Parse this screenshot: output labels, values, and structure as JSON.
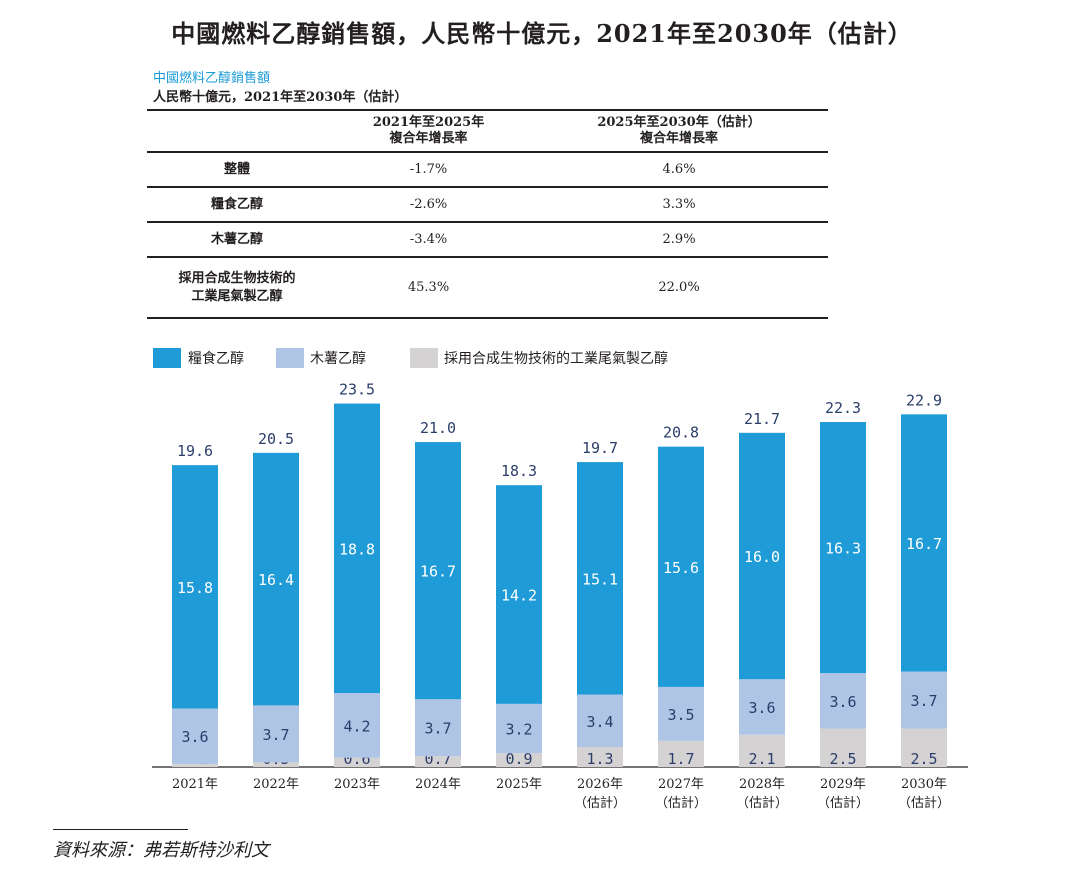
{
  "title": "中國燃料乙醇銷售額，人民幣十億元，2021年至2030年（估計）",
  "subtitle": "中國燃料乙醇銷售額",
  "unit_line": "人民幣十億元，2021年至2030年（估計）",
  "table": {
    "headers": [
      {
        "line1": "2021年至2025年",
        "line2": "複合年增長率"
      },
      {
        "line1": "2025年至2030年（估計）",
        "line2": "複合年增長率"
      }
    ],
    "rows": [
      {
        "label_line1": "整體",
        "label_line2": "",
        "cagr_2021_2025": "-1.7%",
        "cagr_2025_2030": "4.6%"
      },
      {
        "label_line1": "糧食乙醇",
        "label_line2": "",
        "cagr_2021_2025": "-2.6%",
        "cagr_2025_2030": "3.3%"
      },
      {
        "label_line1": "木薯乙醇",
        "label_line2": "",
        "cagr_2021_2025": "-3.4%",
        "cagr_2025_2030": "2.9%"
      },
      {
        "label_line1": "採用合成生物技術的",
        "label_line2": "工業尾氣製乙醇",
        "cagr_2021_2025": "45.3%",
        "cagr_2025_2030": "22.0%"
      }
    ]
  },
  "source": "資料來源：弗若斯特沙利文",
  "colors": {
    "grain": "#1f9bd7",
    "cassava": "#aec5e6",
    "industrial": "#d4d2d3",
    "bar_label_dark": "#2b3e6b",
    "bar_label_light": "#ffffff"
  },
  "chart_data": {
    "type": "bar",
    "stacked": true,
    "categories": [
      "2021年",
      "2022年",
      "2023年",
      "2024年",
      "2025年",
      "2026年\n（估計）",
      "2027年\n（估計）",
      "2028年\n（估計）",
      "2029年\n（估計）",
      "2030年\n（估計）"
    ],
    "series": [
      {
        "name": "糧食乙醇",
        "values": [
          15.8,
          16.4,
          18.8,
          16.7,
          14.2,
          15.1,
          15.6,
          16.0,
          16.3,
          16.7
        ]
      },
      {
        "name": "木薯乙醇",
        "values": [
          3.6,
          3.7,
          4.2,
          3.7,
          3.2,
          3.4,
          3.5,
          3.6,
          3.6,
          3.7
        ]
      },
      {
        "name": "採用合成生物技術的工業尾氣製乙醇",
        "values": [
          0.2,
          0.3,
          0.6,
          0.7,
          0.9,
          1.3,
          1.7,
          2.1,
          2.5,
          2.5
        ]
      }
    ],
    "totals": [
      19.6,
      20.5,
      23.5,
      21.0,
      18.3,
      19.7,
      20.8,
      21.7,
      22.3,
      22.9
    ],
    "legend_position": "top-left",
    "grid": false
  }
}
